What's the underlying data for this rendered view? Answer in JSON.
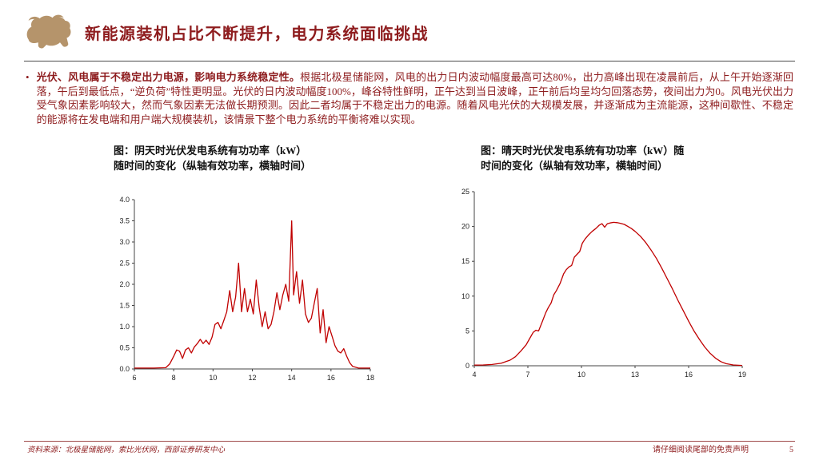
{
  "colors": {
    "accent_maroon": "#8e1c1e",
    "chart_line_red": "#c00000",
    "logo_tan": "#b5946b"
  },
  "header": {
    "title": "新能源装机占比不断提升，电力系统面临挑战",
    "logo_icon": "bull-logo"
  },
  "body": {
    "bullet": "•",
    "lead_bold": "光伏、风电属于不稳定出力电源，影响电力系统稳定性。",
    "text": "根据北极星储能网，风电的出力日内波动幅度最高可达80%，出力高峰出现在凌晨前后，从上午开始逐渐回落，午后到最低点，“逆负荷”特性更明显。光伏的日内波动幅度100%，峰谷特性鲜明，正午达到当日波峰，正午前后均呈均匀回落态势，夜间出力为0。风电光伏出力受气象因素影响较大，然而气象因素无法做长期预测。因此二者均属于不稳定出力的电源。随着风电光伏的大规模发展，并逐渐成为主流能源，这种间歇性、不稳定的能源将在发电端和用户端大规模装机，该情景下整个电力系统的平衡将难以实现。"
  },
  "figures": {
    "left_caption_line1": "图：阴天时光伏发电系统有功功率（kW）",
    "left_caption_line2": "随时间的变化（纵轴有效功率，横轴时间）",
    "right_caption_line1": "图：晴天时光伏发电系统有功功率（kW）随",
    "right_caption_line2": "时间的变化（纵轴有效功率，横轴时间）"
  },
  "footer": {
    "source": "资料来源：北极星储能网，索比光伏网，西部证券研发中心",
    "disclaimer": "请仔细阅读尾部的免责声明",
    "page": "5"
  },
  "chart_data": [
    {
      "type": "line",
      "title": "阴天时光伏发电系统有功功率（kW）随时间的变化",
      "xlabel": "",
      "ylabel": "",
      "grid": false,
      "legend": null,
      "line_color": "#c00000",
      "xlim": [
        6,
        18
      ],
      "ylim": [
        0,
        4
      ],
      "xticks": [
        6,
        8,
        10,
        12,
        14,
        16,
        18
      ],
      "xtick_labels": [
        "6",
        "8",
        "10",
        "12",
        "14",
        "16",
        "18"
      ],
      "yticks": [
        0,
        0.5,
        1,
        1.5,
        2,
        2.5,
        3,
        3.5,
        4
      ],
      "ytick_labels": [
        "0.0",
        "0.5",
        "1.0",
        "1.5",
        "2.0",
        "2.5",
        "3.0",
        "3.5",
        "4.0"
      ],
      "points": [
        [
          6.0,
          0.02
        ],
        [
          7.0,
          0.02
        ],
        [
          7.6,
          0.03
        ],
        [
          7.8,
          0.12
        ],
        [
          8.0,
          0.3
        ],
        [
          8.15,
          0.45
        ],
        [
          8.3,
          0.42
        ],
        [
          8.45,
          0.25
        ],
        [
          8.6,
          0.45
        ],
        [
          8.75,
          0.5
        ],
        [
          8.9,
          0.38
        ],
        [
          9.05,
          0.52
        ],
        [
          9.2,
          0.6
        ],
        [
          9.35,
          0.7
        ],
        [
          9.5,
          0.6
        ],
        [
          9.65,
          0.68
        ],
        [
          9.8,
          0.58
        ],
        [
          9.95,
          0.75
        ],
        [
          10.1,
          1.05
        ],
        [
          10.25,
          1.1
        ],
        [
          10.4,
          0.95
        ],
        [
          10.55,
          1.15
        ],
        [
          10.7,
          1.35
        ],
        [
          10.85,
          1.85
        ],
        [
          11.0,
          1.35
        ],
        [
          11.15,
          1.7
        ],
        [
          11.3,
          2.5
        ],
        [
          11.45,
          1.35
        ],
        [
          11.6,
          1.9
        ],
        [
          11.75,
          1.35
        ],
        [
          11.9,
          1.65
        ],
        [
          12.05,
          1.3
        ],
        [
          12.2,
          2.1
        ],
        [
          12.35,
          1.45
        ],
        [
          12.5,
          1.0
        ],
        [
          12.65,
          1.35
        ],
        [
          12.8,
          0.95
        ],
        [
          12.95,
          1.05
        ],
        [
          13.1,
          1.35
        ],
        [
          13.25,
          1.8
        ],
        [
          13.4,
          1.4
        ],
        [
          13.55,
          1.75
        ],
        [
          13.7,
          2.0
        ],
        [
          13.85,
          1.6
        ],
        [
          14.0,
          3.5
        ],
        [
          14.1,
          1.75
        ],
        [
          14.25,
          2.3
        ],
        [
          14.4,
          1.55
        ],
        [
          14.55,
          2.1
        ],
        [
          14.7,
          1.3
        ],
        [
          14.85,
          1.1
        ],
        [
          15.0,
          1.2
        ],
        [
          15.15,
          1.55
        ],
        [
          15.3,
          1.9
        ],
        [
          15.45,
          0.85
        ],
        [
          15.6,
          1.4
        ],
        [
          15.75,
          0.62
        ],
        [
          15.9,
          1.0
        ],
        [
          16.05,
          0.78
        ],
        [
          16.2,
          0.55
        ],
        [
          16.35,
          0.42
        ],
        [
          16.5,
          0.38
        ],
        [
          16.65,
          0.48
        ],
        [
          16.8,
          0.3
        ],
        [
          16.95,
          0.15
        ],
        [
          17.1,
          0.06
        ],
        [
          17.4,
          0.02
        ],
        [
          18.0,
          0.02
        ]
      ]
    },
    {
      "type": "line",
      "title": "晴天时光伏发电系统有功功率（kW）随时间的变化",
      "xlabel": "",
      "ylabel": "",
      "grid": false,
      "legend": null,
      "line_color": "#c00000",
      "xlim": [
        4,
        19
      ],
      "ylim": [
        0,
        25
      ],
      "xticks": [
        4,
        7,
        10,
        13,
        16,
        19
      ],
      "xtick_labels": [
        "4",
        "7",
        "10",
        "13",
        "16",
        "19"
      ],
      "yticks": [
        0,
        5,
        10,
        15,
        20,
        25
      ],
      "ytick_labels": [
        "0",
        "5",
        "10",
        "15",
        "20",
        "25"
      ],
      "points": [
        [
          4.0,
          0.1
        ],
        [
          4.5,
          0.12
        ],
        [
          5.0,
          0.18
        ],
        [
          5.5,
          0.35
        ],
        [
          6.0,
          0.8
        ],
        [
          6.3,
          1.3
        ],
        [
          6.6,
          2.1
        ],
        [
          6.9,
          3.0
        ],
        [
          7.1,
          3.9
        ],
        [
          7.3,
          4.8
        ],
        [
          7.45,
          5.1
        ],
        [
          7.6,
          5.0
        ],
        [
          7.8,
          6.3
        ],
        [
          8.0,
          7.6
        ],
        [
          8.15,
          8.4
        ],
        [
          8.3,
          9.0
        ],
        [
          8.45,
          10.2
        ],
        [
          8.6,
          10.8
        ],
        [
          8.8,
          11.8
        ],
        [
          9.0,
          13.2
        ],
        [
          9.15,
          13.8
        ],
        [
          9.3,
          14.2
        ],
        [
          9.45,
          14.4
        ],
        [
          9.6,
          15.6
        ],
        [
          9.75,
          16.0
        ],
        [
          9.9,
          16.4
        ],
        [
          10.05,
          17.6
        ],
        [
          10.2,
          18.2
        ],
        [
          10.4,
          18.8
        ],
        [
          10.6,
          19.3
        ],
        [
          10.8,
          19.7
        ],
        [
          11.0,
          20.2
        ],
        [
          11.15,
          20.4
        ],
        [
          11.3,
          19.9
        ],
        [
          11.45,
          20.4
        ],
        [
          11.6,
          20.5
        ],
        [
          11.8,
          20.6
        ],
        [
          12.0,
          20.55
        ],
        [
          12.2,
          20.45
        ],
        [
          12.4,
          20.3
        ],
        [
          12.6,
          20.0
        ],
        [
          12.8,
          19.7
        ],
        [
          13.0,
          19.3
        ],
        [
          13.3,
          18.6
        ],
        [
          13.6,
          17.7
        ],
        [
          13.9,
          16.6
        ],
        [
          14.2,
          15.4
        ],
        [
          14.5,
          14.0
        ],
        [
          14.8,
          12.5
        ],
        [
          15.1,
          11.0
        ],
        [
          15.4,
          9.4
        ],
        [
          15.7,
          7.9
        ],
        [
          16.0,
          6.4
        ],
        [
          16.3,
          5.0
        ],
        [
          16.6,
          3.8
        ],
        [
          16.9,
          2.7
        ],
        [
          17.2,
          1.8
        ],
        [
          17.5,
          1.1
        ],
        [
          17.8,
          0.6
        ],
        [
          18.1,
          0.3
        ],
        [
          18.5,
          0.12
        ],
        [
          19.0,
          0.05
        ]
      ]
    }
  ]
}
